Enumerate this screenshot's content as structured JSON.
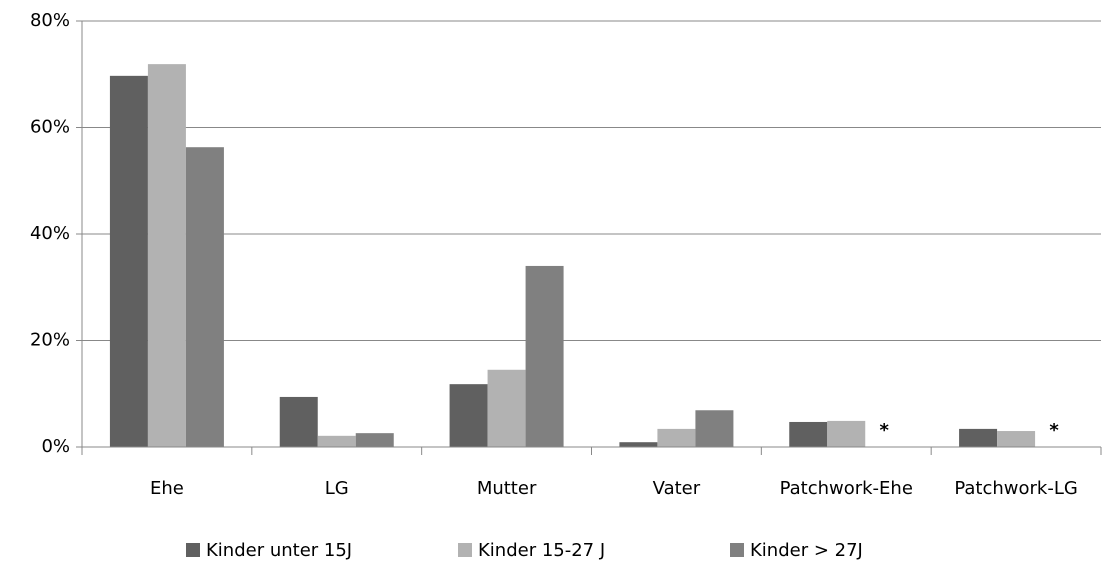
{
  "chart_data": {
    "type": "bar",
    "categories": [
      "Ehe",
      "LG",
      "Mutter",
      "Vater",
      "Patchwork-Ehe",
      "Patchwork-LG"
    ],
    "series": [
      {
        "name": "Kinder unter 15J",
        "color": "#606060",
        "values": [
          69.7,
          9.4,
          11.8,
          0.9,
          4.7,
          3.4
        ]
      },
      {
        "name": "Kinder 15-27 J",
        "color": "#b2b2b2",
        "values": [
          71.9,
          2.1,
          14.5,
          3.4,
          4.9,
          3.0
        ]
      },
      {
        "name": "Kinder > 27J",
        "color": "#808080",
        "values": [
          56.3,
          2.6,
          34.0,
          6.9,
          null,
          null
        ],
        "value_labels": [
          null,
          null,
          null,
          null,
          "*",
          "*"
        ]
      }
    ],
    "ylim": [
      0,
      80
    ],
    "yticks": [
      {
        "value": 0,
        "label": "0%"
      },
      {
        "value": 20,
        "label": "20%"
      },
      {
        "value": 40,
        "label": "40%"
      },
      {
        "value": 60,
        "label": "60%"
      },
      {
        "value": 80,
        "label": "80%"
      }
    ],
    "grid": true,
    "legend": "bottom"
  }
}
